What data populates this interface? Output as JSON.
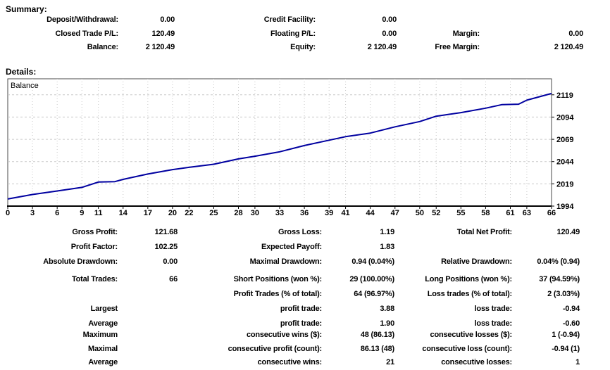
{
  "summary": {
    "heading": "Summary:",
    "rows": [
      [
        "Deposit/Withdrawal:",
        "0.00",
        "Credit Facility:",
        "0.00",
        "",
        ""
      ],
      [
        "Closed Trade P/L:",
        "120.49",
        "Floating P/L:",
        "0.00",
        "Margin:",
        "0.00"
      ],
      [
        "Balance:",
        "2 120.49",
        "Equity:",
        "2 120.49",
        "Free Margin:",
        "2 120.49"
      ]
    ]
  },
  "details": {
    "heading": "Details:"
  },
  "chart_data": {
    "type": "line",
    "title": "Balance",
    "legend": "Balance",
    "xlabel": "",
    "ylabel": "",
    "x_range": [
      0,
      66
    ],
    "y_range": [
      1994,
      2137
    ],
    "x_ticks": [
      0,
      3,
      6,
      9,
      11,
      14,
      17,
      20,
      22,
      25,
      28,
      30,
      33,
      36,
      39,
      41,
      44,
      47,
      50,
      52,
      55,
      58,
      61,
      63,
      66
    ],
    "y_ticks": [
      1994,
      2019,
      2044,
      2069,
      2094,
      2119
    ],
    "grid": true,
    "legend_position": "top-left",
    "line_color": "#0000A0",
    "grid_color": "#c9c9c9",
    "axis_color": "#000000",
    "series": [
      {
        "name": "Balance",
        "points": [
          [
            0,
            2002
          ],
          [
            3,
            2007
          ],
          [
            6,
            2011
          ],
          [
            9,
            2015
          ],
          [
            11,
            2021
          ],
          [
            13,
            2021.5
          ],
          [
            14,
            2024
          ],
          [
            17,
            2030
          ],
          [
            20,
            2035
          ],
          [
            22,
            2037.5
          ],
          [
            25,
            2041
          ],
          [
            28,
            2047
          ],
          [
            30,
            2050
          ],
          [
            33,
            2055
          ],
          [
            36,
            2062
          ],
          [
            39,
            2068
          ],
          [
            41,
            2072
          ],
          [
            44,
            2076
          ],
          [
            47,
            2083
          ],
          [
            50,
            2089
          ],
          [
            52,
            2095
          ],
          [
            55,
            2099
          ],
          [
            58,
            2104
          ],
          [
            60,
            2108
          ],
          [
            62,
            2108.5
          ],
          [
            63,
            2113
          ],
          [
            66,
            2120.5
          ]
        ]
      }
    ],
    "start_balance": 2000.0,
    "final_balance": 2120.49
  },
  "stats": {
    "rows": [
      [
        "Gross Profit:",
        "121.68",
        "Gross Loss:",
        "1.19",
        "Total Net Profit:",
        "120.49"
      ],
      [
        "Profit Factor:",
        "102.25",
        "Expected Payoff:",
        "1.83",
        "",
        ""
      ],
      [
        "Absolute Drawdown:",
        "0.00",
        "Maximal Drawdown:",
        "0.94 (0.04%)",
        "Relative Drawdown:",
        "0.04% (0.94)"
      ],
      [
        "Total Trades:",
        "66",
        "Short Positions (won %):",
        "29 (100.00%)",
        "Long Positions (won %):",
        "37 (94.59%)"
      ],
      [
        "",
        "",
        "Profit Trades (% of total):",
        "64 (96.97%)",
        "Loss trades (% of total):",
        "2 (3.03%)"
      ],
      [
        "Largest",
        "",
        "profit trade:",
        "3.88",
        "loss trade:",
        "-0.94"
      ],
      [
        "Average",
        "",
        "profit trade:",
        "1.90",
        "loss trade:",
        "-0.60"
      ],
      [
        "Maximum",
        "",
        "consecutive wins ($):",
        "48 (86.13)",
        "consecutive losses ($):",
        "1 (-0.94)"
      ],
      [
        "Maximal",
        "",
        "consecutive profit (count):",
        "86.13 (48)",
        "consecutive loss (count):",
        "-0.94 (1)"
      ],
      [
        "Average",
        "",
        "consecutive wins:",
        "21",
        "consecutive losses:",
        "1"
      ]
    ]
  }
}
